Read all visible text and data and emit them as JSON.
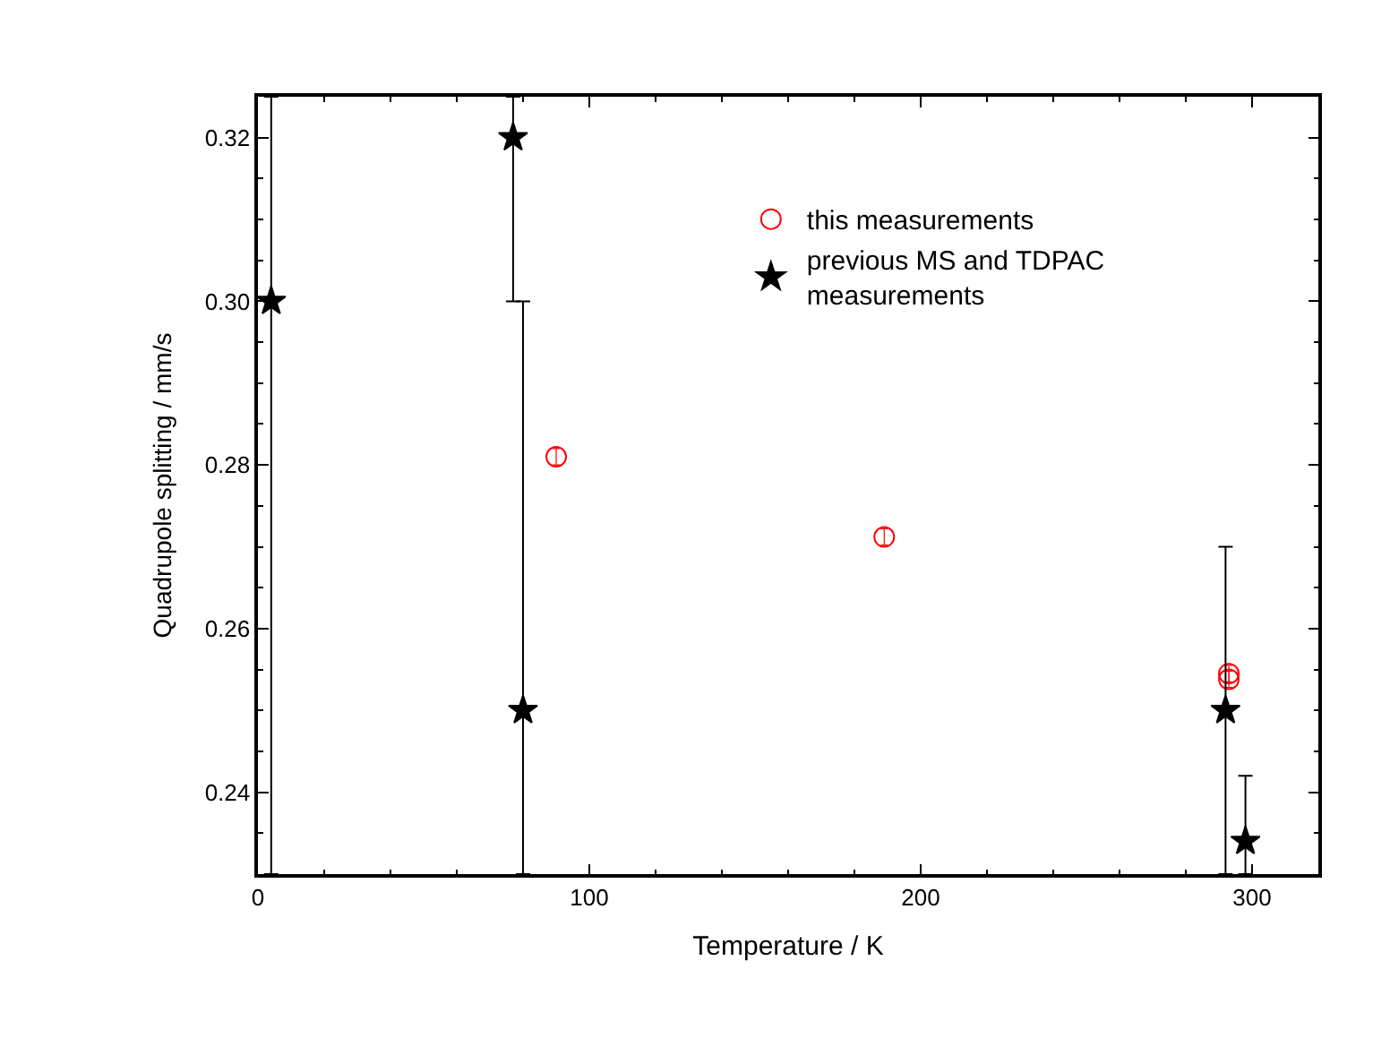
{
  "chart_data": {
    "type": "scatter",
    "xlabel": "Temperature / K",
    "ylabel": "Quadrupole splitting / mm/s",
    "xlim": [
      0,
      320
    ],
    "xticks": [
      0,
      100,
      200,
      300
    ],
    "ylim": [
      0.23,
      0.325
    ],
    "yticks": [
      0.24,
      0.26,
      0.28,
      {
        "value": 0.3,
        "label": "0.30"
      },
      0.32
    ],
    "legend": "top right",
    "series": [
      {
        "name": "this measurements",
        "color": "#ff0000",
        "marker": "circle",
        "x": [
          90,
          189,
          293,
          293
        ],
        "values": [
          0.281,
          0.2712,
          0.2545,
          0.2538
        ],
        "errors": [
          0.001,
          0.001,
          0.001,
          0.001
        ]
      },
      {
        "name": "previous MS and TDPAC\nmeasurements",
        "color": "#000000",
        "marker": "star",
        "x": [
          4,
          77,
          80,
          292,
          298
        ],
        "values": [
          0.3,
          0.32,
          0.25,
          0.25,
          0.234
        ],
        "errors": [
          [
            0.23,
            0.325
          ],
          [
            0.3,
            0.325
          ],
          [
            0.23,
            0.3
          ],
          [
            0.23,
            0.27
          ],
          [
            0.23,
            0.242
          ]
        ]
      }
    ]
  }
}
